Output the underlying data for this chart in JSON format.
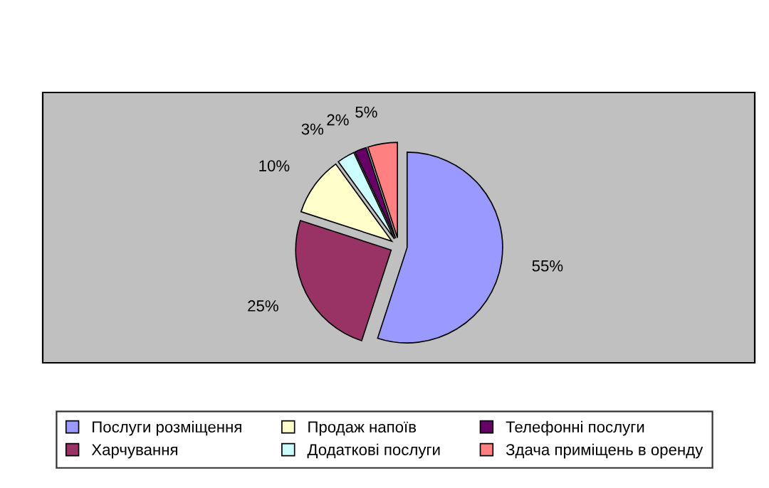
{
  "chart_data": {
    "type": "pie",
    "categories": [
      "Послуги розміщення",
      "Харчування",
      "Продаж напоїв",
      "Додаткові послуги",
      "Телефонні послуги",
      "Здача приміщень в оренду"
    ],
    "values": [
      55,
      25,
      10,
      3,
      2,
      5
    ],
    "colors": [
      "#9999ff",
      "#993366",
      "#ffffcc",
      "#ccffff",
      "#660066",
      "#ff8080"
    ],
    "value_labels": [
      "55%",
      "25%",
      "10%",
      "3%",
      "2%",
      "5%"
    ],
    "legend": "bottom"
  }
}
